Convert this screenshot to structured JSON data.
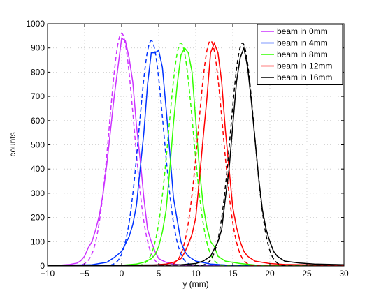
{
  "chart_data": {
    "type": "line",
    "title": "",
    "xlabel": "y (mm)",
    "ylabel": "counts",
    "xlim": [
      -10,
      30
    ],
    "ylim": [
      0,
      1000
    ],
    "xticks": [
      -10,
      -5,
      0,
      5,
      10,
      15,
      20,
      25,
      30
    ],
    "yticks": [
      0,
      100,
      200,
      300,
      400,
      500,
      600,
      700,
      800,
      900,
      1000
    ],
    "grid": true,
    "legend_position": "top-right",
    "series": [
      {
        "name": "beam in 0mm",
        "color": "#cc33ff",
        "mean": 0,
        "sigma": 1.65,
        "peak": 960,
        "hist": [
          [
            -10,
            2
          ],
          [
            -9,
            3
          ],
          [
            -8,
            4
          ],
          [
            -7,
            6
          ],
          [
            -6,
            12
          ],
          [
            -5.5,
            22
          ],
          [
            -5,
            40
          ],
          [
            -4.5,
            75
          ],
          [
            -4,
            100
          ],
          [
            -3.5,
            150
          ],
          [
            -3,
            210
          ],
          [
            -2.5,
            300
          ],
          [
            -2,
            420
          ],
          [
            -1.5,
            560
          ],
          [
            -1,
            700
          ],
          [
            -0.5,
            820
          ],
          [
            0,
            940
          ],
          [
            0.5,
            930
          ],
          [
            1,
            860
          ],
          [
            1.5,
            760
          ],
          [
            2,
            580
          ],
          [
            2.5,
            440
          ],
          [
            3,
            280
          ],
          [
            3.5,
            150
          ],
          [
            4,
            100
          ],
          [
            4.5,
            60
          ],
          [
            5,
            30
          ],
          [
            6,
            15
          ],
          [
            7,
            8
          ],
          [
            8,
            4
          ],
          [
            10,
            2
          ],
          [
            30,
            2
          ]
        ]
      },
      {
        "name": "beam in 4mm",
        "color": "#0033ff",
        "mean": 4,
        "sigma": 1.65,
        "peak": 930,
        "hist": [
          [
            -10,
            2
          ],
          [
            -4,
            5
          ],
          [
            -2,
            15
          ],
          [
            -1,
            35
          ],
          [
            0,
            60
          ],
          [
            0.5,
            90
          ],
          [
            1,
            120
          ],
          [
            1.5,
            170
          ],
          [
            2,
            250
          ],
          [
            2.5,
            400
          ],
          [
            3,
            550
          ],
          [
            3.5,
            750
          ],
          [
            4,
            880
          ],
          [
            4.5,
            880
          ],
          [
            5,
            890
          ],
          [
            5.5,
            820
          ],
          [
            6,
            650
          ],
          [
            6.5,
            470
          ],
          [
            7,
            280
          ],
          [
            7.5,
            190
          ],
          [
            8,
            100
          ],
          [
            8.5,
            60
          ],
          [
            9,
            40
          ],
          [
            10,
            20
          ],
          [
            12,
            8
          ],
          [
            14,
            4
          ],
          [
            30,
            2
          ]
        ]
      },
      {
        "name": "beam in 8mm",
        "color": "#33ff00",
        "mean": 8,
        "sigma": 1.65,
        "peak": 920,
        "hist": [
          [
            -10,
            2
          ],
          [
            0,
            3
          ],
          [
            2,
            8
          ],
          [
            3,
            15
          ],
          [
            4,
            30
          ],
          [
            4.5,
            45
          ],
          [
            5,
            80
          ],
          [
            5.5,
            140
          ],
          [
            6,
            230
          ],
          [
            6.5,
            400
          ],
          [
            7,
            590
          ],
          [
            7.5,
            750
          ],
          [
            8,
            870
          ],
          [
            8.5,
            900
          ],
          [
            9,
            880
          ],
          [
            9.5,
            800
          ],
          [
            10,
            600
          ],
          [
            10.5,
            400
          ],
          [
            11,
            250
          ],
          [
            11.5,
            160
          ],
          [
            12,
            100
          ],
          [
            12.5,
            80
          ],
          [
            13,
            40
          ],
          [
            14,
            20
          ],
          [
            16,
            10
          ],
          [
            18,
            4
          ],
          [
            30,
            2
          ]
        ]
      },
      {
        "name": "beam in 12mm",
        "color": "#ff0000",
        "mean": 12,
        "sigma": 1.65,
        "peak": 930,
        "hist": [
          [
            -10,
            2
          ],
          [
            4,
            3
          ],
          [
            6,
            8
          ],
          [
            7,
            15
          ],
          [
            8,
            30
          ],
          [
            8.5,
            55
          ],
          [
            9,
            90
          ],
          [
            9.5,
            130
          ],
          [
            10,
            200
          ],
          [
            10.5,
            360
          ],
          [
            11,
            530
          ],
          [
            11.5,
            690
          ],
          [
            12,
            880
          ],
          [
            12.5,
            920
          ],
          [
            13,
            880
          ],
          [
            13.5,
            760
          ],
          [
            14,
            560
          ],
          [
            14.5,
            400
          ],
          [
            15,
            240
          ],
          [
            15.5,
            160
          ],
          [
            16,
            100
          ],
          [
            16.5,
            60
          ],
          [
            17,
            40
          ],
          [
            18,
            20
          ],
          [
            20,
            10
          ],
          [
            22,
            6
          ],
          [
            30,
            2
          ]
        ]
      },
      {
        "name": "beam in 16mm",
        "color": "#000000",
        "mean": 16.3,
        "sigma": 1.6,
        "peak": 920,
        "hist": [
          [
            -10,
            2
          ],
          [
            8,
            5
          ],
          [
            10,
            10
          ],
          [
            11,
            20
          ],
          [
            12,
            40
          ],
          [
            12.5,
            70
          ],
          [
            13,
            100
          ],
          [
            13.5,
            150
          ],
          [
            14,
            280
          ],
          [
            14.5,
            400
          ],
          [
            15,
            580
          ],
          [
            15.5,
            760
          ],
          [
            16,
            860
          ],
          [
            16.5,
            900
          ],
          [
            17,
            820
          ],
          [
            17.5,
            680
          ],
          [
            18,
            520
          ],
          [
            18.5,
            360
          ],
          [
            19,
            230
          ],
          [
            19.5,
            150
          ],
          [
            20,
            100
          ],
          [
            20.5,
            60
          ],
          [
            21,
            40
          ],
          [
            22,
            20
          ],
          [
            24,
            12
          ],
          [
            26,
            8
          ],
          [
            30,
            5
          ]
        ]
      }
    ]
  }
}
